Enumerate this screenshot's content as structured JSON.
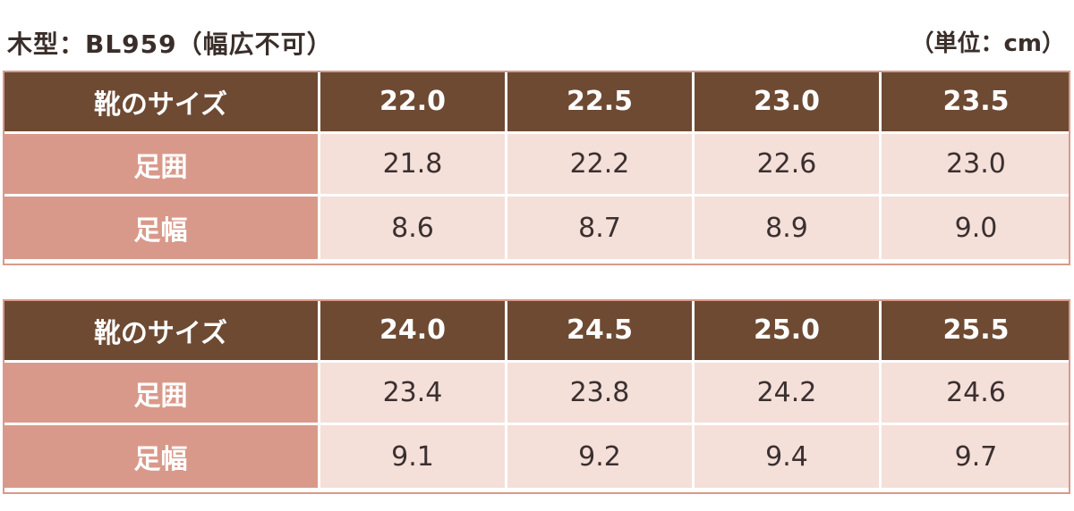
{
  "header": {
    "title": "木型：BL959（幅広不可）",
    "unit": "（単位：cm）"
  },
  "tables": [
    {
      "header_label": "靴のサイズ",
      "sizes": [
        "22.0",
        "22.5",
        "23.0",
        "23.5"
      ],
      "rows": [
        {
          "label": "足囲",
          "values": [
            "21.8",
            "22.2",
            "22.6",
            "23.0"
          ]
        },
        {
          "label": "足幅",
          "values": [
            "8.6",
            "8.7",
            "8.9",
            "9.0"
          ]
        }
      ]
    },
    {
      "header_label": "靴のサイズ",
      "sizes": [
        "24.0",
        "24.5",
        "25.0",
        "25.5"
      ],
      "rows": [
        {
          "label": "足囲",
          "values": [
            "23.4",
            "23.8",
            "24.2",
            "24.6"
          ]
        },
        {
          "label": "足幅",
          "values": [
            "9.1",
            "9.2",
            "9.4",
            "9.7"
          ]
        }
      ]
    }
  ],
  "colors": {
    "header_bg": "#6e4a33",
    "label_bg": "#d9998a",
    "cell_bg": "#f4dfd9"
  }
}
